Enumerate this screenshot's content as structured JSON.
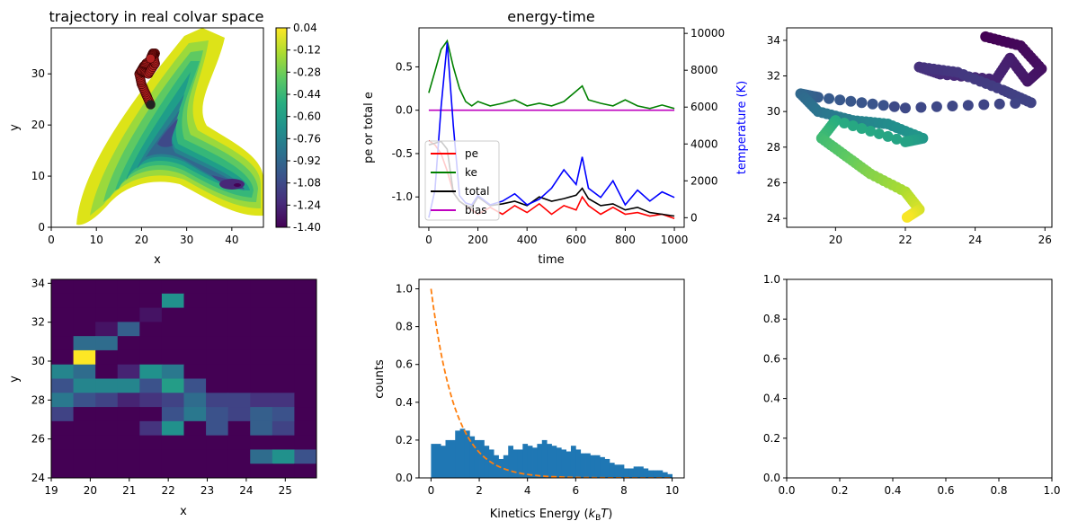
{
  "figure": {
    "panels": [
      {
        "id": "p1",
        "title": "trajectory in real colvar space",
        "xlabel": "x",
        "ylabel": "y",
        "xticks": [
          "0",
          "10",
          "20",
          "30",
          "40"
        ],
        "yticks": [
          "0",
          "10",
          "20",
          "30"
        ],
        "colorbar_ticks": [
          "0.04",
          "-0.12",
          "-0.28",
          "-0.44",
          "-0.60",
          "-0.76",
          "-0.92",
          "-1.08",
          "-1.24",
          "-1.40"
        ]
      },
      {
        "id": "p2",
        "title": "energy-time",
        "xlabel": "time",
        "ylabel": "pe or total e",
        "y2label": "temperature (K)",
        "xticks": [
          "0",
          "200",
          "400",
          "600",
          "800",
          "1000"
        ],
        "yticks": [
          "0.5",
          "0.0",
          "-0.5",
          "-1.0"
        ],
        "y2ticks": [
          "10000",
          "8000",
          "6000",
          "4000",
          "2000",
          "0"
        ],
        "legend": [
          "pe",
          "ke",
          "total",
          "bias"
        ]
      },
      {
        "id": "p3",
        "title": "",
        "xticks": [
          "20",
          "22",
          "24",
          "26"
        ],
        "yticks": [
          "34",
          "32",
          "30",
          "28",
          "26",
          "24"
        ]
      },
      {
        "id": "p4",
        "title": "",
        "xlabel": "x",
        "ylabel": "y",
        "xticks": [
          "19",
          "20",
          "21",
          "22",
          "23",
          "24",
          "25"
        ],
        "yticks": [
          "34",
          "32",
          "30",
          "28",
          "26",
          "24"
        ]
      },
      {
        "id": "p5",
        "title": "",
        "xlabel": "Kinetics Energy (kBT)",
        "ylabel": "counts",
        "xticks": [
          "0",
          "2",
          "4",
          "6",
          "8",
          "10"
        ],
        "yticks": [
          "1.0",
          "0.8",
          "0.6",
          "0.4",
          "0.2",
          "0.0"
        ]
      },
      {
        "id": "p6",
        "title": "",
        "xticks": [
          "0.0",
          "0.2",
          "0.4",
          "0.6",
          "0.8",
          "1.0"
        ],
        "yticks": [
          "0.0",
          "0.2",
          "0.4",
          "0.6",
          "0.8",
          "1.0"
        ]
      }
    ]
  },
  "chart_data": [
    {
      "type": "contour",
      "title": "trajectory in real colvar space",
      "xlabel": "x",
      "ylabel": "y",
      "xlim": [
        0,
        47
      ],
      "ylim": [
        0,
        39
      ],
      "levels": [
        -1.4,
        -1.24,
        -1.08,
        -0.92,
        -0.76,
        -0.6,
        -0.44,
        -0.28,
        -0.12,
        0.04
      ],
      "colormap": "viridis",
      "trajectory": {
        "color": "#b22222",
        "x": [
          22,
          21,
          20,
          19.5,
          20.5,
          22,
          23,
          22.5,
          21,
          20,
          21.5,
          23,
          22.5,
          22
        ],
        "y": [
          24,
          26,
          28,
          30,
          31.5,
          32.5,
          34,
          33,
          32,
          30.5,
          30,
          32,
          34,
          33
        ]
      }
    },
    {
      "type": "line",
      "title": "energy-time",
      "xlabel": "time",
      "ylabel": "pe or total e",
      "y2label": "temperature (K)",
      "xlim": [
        -40,
        1040
      ],
      "ylim": [
        -1.35,
        0.95
      ],
      "y2lim": [
        -520,
        10300
      ],
      "legend_position": "center-left",
      "x": [
        0,
        25,
        50,
        75,
        100,
        125,
        150,
        175,
        200,
        250,
        300,
        350,
        400,
        450,
        500,
        550,
        600,
        625,
        650,
        700,
        750,
        800,
        850,
        900,
        950,
        1000
      ],
      "series": [
        {
          "name": "pe",
          "color": "#ff0000",
          "axis": "left",
          "values": [
            -0.35,
            -0.4,
            -0.5,
            -0.7,
            -0.95,
            -1.05,
            -1.1,
            -1.15,
            -1.2,
            -1.12,
            -1.2,
            -1.1,
            -1.18,
            -1.08,
            -1.2,
            -1.1,
            -1.15,
            -1.0,
            -1.1,
            -1.2,
            -1.12,
            -1.2,
            -1.18,
            -1.22,
            -1.2,
            -1.25
          ]
        },
        {
          "name": "ke",
          "color": "#008000",
          "axis": "left",
          "values": [
            0.2,
            0.45,
            0.7,
            0.8,
            0.5,
            0.25,
            0.1,
            0.05,
            0.1,
            0.05,
            0.08,
            0.12,
            0.05,
            0.08,
            0.05,
            0.1,
            0.22,
            0.28,
            0.12,
            0.08,
            0.05,
            0.12,
            0.05,
            0.02,
            0.06,
            0.02
          ]
        },
        {
          "name": "total",
          "color": "#000000",
          "axis": "left",
          "values": [
            -0.4,
            -0.38,
            -0.36,
            -0.45,
            -0.95,
            -1.05,
            -1.1,
            -1.12,
            -1.0,
            -1.1,
            -1.08,
            -1.05,
            -1.1,
            -1.0,
            -1.05,
            -1.02,
            -0.98,
            -0.9,
            -1.02,
            -1.1,
            -1.08,
            -1.15,
            -1.12,
            -1.18,
            -1.2,
            -1.22
          ]
        },
        {
          "name": "bias",
          "color": "#bf00bf",
          "axis": "left",
          "values": [
            0,
            0,
            0,
            0,
            0,
            0,
            0,
            0,
            0,
            0,
            0,
            0,
            0,
            0,
            0,
            0,
            0,
            0,
            0,
            0,
            0,
            0,
            0,
            0,
            0,
            0
          ]
        },
        {
          "name": "temperature",
          "color": "#0000ff",
          "axis": "right",
          "values": [
            0,
            1500,
            6000,
            9500,
            5000,
            1200,
            800,
            700,
            1200,
            700,
            900,
            1300,
            700,
            1000,
            1600,
            2600,
            1800,
            3300,
            1600,
            1100,
            2000,
            700,
            1500,
            900,
            1400,
            1100
          ]
        }
      ]
    },
    {
      "type": "scatter",
      "xlim": [
        18.6,
        26.2
      ],
      "ylim": [
        23.5,
        34.7
      ],
      "colormap": "viridis",
      "x": [
        24.3,
        25.3,
        25.9,
        25.5,
        25.0,
        24.6,
        23.0,
        22.4,
        23.5,
        24.8,
        25.6,
        22.0,
        19.5,
        19.0,
        19.5,
        20.5,
        21.5,
        22.5,
        22.0,
        20.0,
        19.6,
        20.3,
        21.0,
        22.0,
        22.4,
        22.0
      ],
      "y": [
        34.2,
        33.7,
        32.4,
        31.7,
        33.0,
        31.8,
        32.1,
        32.5,
        32.2,
        31.2,
        30.5,
        30.2,
        30.8,
        31.0,
        30.0,
        29.5,
        29.3,
        28.5,
        28.3,
        29.5,
        28.5,
        27.5,
        26.5,
        25.5,
        24.5,
        24.0
      ],
      "c": [
        0,
        0.04,
        0.08,
        0.12,
        0.16,
        0.2,
        0.24,
        0.28,
        0.32,
        0.36,
        0.4,
        0.44,
        0.48,
        0.52,
        0.56,
        0.6,
        0.64,
        0.68,
        0.72,
        0.76,
        0.8,
        0.84,
        0.88,
        0.92,
        0.96,
        1.0
      ]
    },
    {
      "type": "heatmap",
      "xlabel": "x",
      "ylabel": "y",
      "xlim": [
        19,
        25.8
      ],
      "ylim": [
        24,
        34.2
      ],
      "colormap": "viridis",
      "nx": 12,
      "ny": 14,
      "values": [
        [
          0,
          0,
          0,
          0,
          0,
          0,
          0,
          0,
          0,
          0,
          0,
          0
        ],
        [
          0,
          0,
          0,
          0,
          0,
          0.5,
          0,
          0,
          0,
          0,
          0,
          0
        ],
        [
          0,
          0,
          0,
          0,
          0.05,
          0,
          0,
          0,
          0,
          0,
          0,
          0
        ],
        [
          0,
          0,
          0.05,
          0.3,
          0,
          0,
          0,
          0,
          0,
          0,
          0,
          0
        ],
        [
          0,
          0.35,
          0.35,
          0,
          0,
          0,
          0,
          0,
          0,
          0,
          0,
          0
        ],
        [
          0,
          1.0,
          0,
          0,
          0,
          0,
          0,
          0,
          0,
          0,
          0,
          0
        ],
        [
          0.45,
          0.35,
          0,
          0.1,
          0.5,
          0.4,
          0,
          0,
          0,
          0,
          0,
          0
        ],
        [
          0.25,
          0.45,
          0.45,
          0.45,
          0.25,
          0.55,
          0.25,
          0,
          0,
          0,
          0,
          0
        ],
        [
          0.4,
          0.25,
          0.2,
          0.1,
          0.15,
          0.2,
          0.35,
          0.2,
          0.2,
          0.15,
          0.15,
          0
        ],
        [
          0.2,
          0,
          0,
          0,
          0,
          0.25,
          0.4,
          0.25,
          0.2,
          0.3,
          0.25,
          0
        ],
        [
          0,
          0,
          0,
          0,
          0.15,
          0.5,
          0,
          0.25,
          0,
          0.3,
          0.2,
          0
        ],
        [
          0,
          0,
          0,
          0,
          0,
          0,
          0,
          0,
          0,
          0,
          0,
          0
        ],
        [
          0,
          0,
          0,
          0,
          0,
          0,
          0,
          0,
          0,
          0.35,
          0.5,
          0.25
        ],
        [
          0,
          0,
          0,
          0,
          0,
          0,
          0,
          0,
          0,
          0,
          0,
          0
        ]
      ]
    },
    {
      "type": "bar",
      "xlabel": "Kinetics Energy (kBT)",
      "ylabel": "counts",
      "xlim": [
        -0.5,
        10.5
      ],
      "ylim": [
        0,
        1.05
      ],
      "bin_width": 0.2,
      "bin_start": 0,
      "values": [
        0.18,
        0.18,
        0.17,
        0.2,
        0.2,
        0.25,
        0.26,
        0.25,
        0.22,
        0.2,
        0.2,
        0.17,
        0.15,
        0.12,
        0.1,
        0.12,
        0.17,
        0.15,
        0.15,
        0.18,
        0.17,
        0.16,
        0.18,
        0.2,
        0.18,
        0.17,
        0.16,
        0.15,
        0.14,
        0.17,
        0.15,
        0.13,
        0.13,
        0.12,
        0.12,
        0.11,
        0.1,
        0.08,
        0.07,
        0.07,
        0.05,
        0.05,
        0.06,
        0.06,
        0.05,
        0.04,
        0.04,
        0.04,
        0.03,
        0.02
      ],
      "curve": {
        "name": "exp(-E)",
        "color": "#ff7f0e",
        "style": "dashed"
      }
    },
    {
      "type": "empty",
      "xlim": [
        0,
        1
      ],
      "ylim": [
        0,
        1
      ]
    }
  ]
}
